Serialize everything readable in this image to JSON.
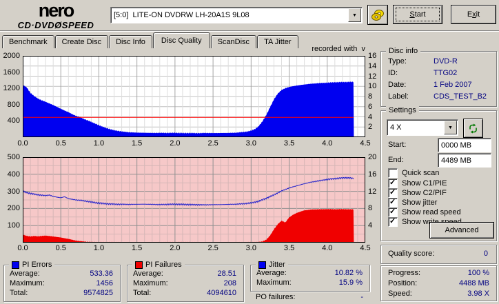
{
  "header": {
    "logo_top": "nero",
    "logo_sub_left": "CD·DVD",
    "logo_disc": "Ø",
    "logo_sub_right": "SPEED",
    "drive_select_value": "[5:0]  LITE-ON DVDRW LH-20A1S 9L08",
    "start_button": {
      "u": "S",
      "p2": "tart"
    },
    "exit_button": {
      "p1": "E",
      "u": "x",
      "p2": "it"
    }
  },
  "tabs": [
    {
      "label": "Benchmark",
      "active": false
    },
    {
      "label": "Create Disc",
      "active": false
    },
    {
      "label": "Disc Info",
      "active": false
    },
    {
      "label": "Disc Quality",
      "active": true
    },
    {
      "label": "ScanDisc",
      "active": false
    },
    {
      "label": "TA Jitter",
      "active": false
    }
  ],
  "chart_note": "recorded with  v",
  "chart_data": [
    {
      "type": "area",
      "name": "pi-errors-chart",
      "title": "PI Errors vs position (GB) with write speed line",
      "bg": "#ffffff",
      "x_max": 4.5,
      "x_ticks": [
        "0.0",
        "0.5",
        "1.0",
        "1.5",
        "2.0",
        "2.5",
        "3.0",
        "3.5",
        "4.0",
        "4.5"
      ],
      "grid": {
        "x_minor": 0.1,
        "x_major": 0.5,
        "h_div": 8,
        "h_major_every": 1
      },
      "left_axis": {
        "max": 2000,
        "ticks": [
          2000,
          1600,
          1200,
          800,
          400
        ]
      },
      "right_axis": {
        "max": 16,
        "ticks": [
          16,
          14,
          12,
          10,
          8,
          6,
          4,
          2
        ]
      },
      "series": [
        {
          "name": "PI Errors",
          "type": "area",
          "axis": "left",
          "color": "#0000f0",
          "noise": 14,
          "min": 4,
          "points": [
            [
              0,
              1280
            ],
            [
              0.05,
              1230
            ],
            [
              0.1,
              1090
            ],
            [
              0.15,
              1010
            ],
            [
              0.2,
              950
            ],
            [
              0.25,
              905
            ],
            [
              0.3,
              870
            ],
            [
              0.35,
              830
            ],
            [
              0.4,
              790
            ],
            [
              0.45,
              745
            ],
            [
              0.5,
              700
            ],
            [
              0.55,
              655
            ],
            [
              0.6,
              615
            ],
            [
              0.65,
              565
            ],
            [
              0.7,
              525
            ],
            [
              0.75,
              495
            ],
            [
              0.8,
              450
            ],
            [
              0.85,
              415
            ],
            [
              0.9,
              375
            ],
            [
              0.95,
              335
            ],
            [
              1,
              295
            ],
            [
              1.05,
              255
            ],
            [
              1.1,
              225
            ],
            [
              1.15,
              195
            ],
            [
              1.2,
              170
            ],
            [
              1.3,
              140
            ],
            [
              1.4,
              120
            ],
            [
              1.5,
              112
            ],
            [
              1.6,
              108
            ],
            [
              1.7,
              104
            ],
            [
              1.8,
              106
            ],
            [
              1.9,
              104
            ],
            [
              2,
              108
            ],
            [
              2.1,
              100
            ],
            [
              2.2,
              102
            ],
            [
              2.3,
              98
            ],
            [
              2.4,
              104
            ],
            [
              2.5,
              100
            ],
            [
              2.6,
              102
            ],
            [
              2.7,
              104
            ],
            [
              2.8,
              110
            ],
            [
              2.9,
              128
            ],
            [
              2.95,
              140
            ],
            [
              3,
              160
            ],
            [
              3.05,
              200
            ],
            [
              3.1,
              270
            ],
            [
              3.15,
              390
            ],
            [
              3.2,
              550
            ],
            [
              3.25,
              740
            ],
            [
              3.3,
              930
            ],
            [
              3.35,
              1070
            ],
            [
              3.4,
              1160
            ],
            [
              3.45,
              1205
            ],
            [
              3.5,
              1235
            ],
            [
              3.6,
              1270
            ],
            [
              3.7,
              1295
            ],
            [
              3.8,
              1315
            ],
            [
              3.9,
              1330
            ],
            [
              4,
              1340
            ],
            [
              4.1,
              1350
            ],
            [
              4.2,
              1355
            ],
            [
              4.3,
              1360
            ],
            [
              4.35,
              1358
            ]
          ]
        },
        {
          "name": "Write speed 4X",
          "type": "line",
          "axis": "right",
          "color": "#ff0000",
          "noise": 0,
          "points": [
            [
              0,
              3.9
            ],
            [
              4.35,
              3.9
            ]
          ]
        }
      ]
    },
    {
      "type": "area",
      "name": "pi-failures-jitter-chart",
      "title": "PI Failures (left) and Jitter % (right) vs position (GB)",
      "bg": "#f6c8c8",
      "x_max": 4.5,
      "x_ticks": [
        "0.0",
        "0.5",
        "1.0",
        "1.5",
        "2.0",
        "2.5",
        "3.0",
        "3.5",
        "4.0",
        "4.5"
      ],
      "grid": {
        "x_minor": 0.1,
        "x_major": 0.5,
        "h_div": 10,
        "h_major_every": 2
      },
      "left_axis": {
        "max": 500,
        "ticks": [
          500,
          400,
          300,
          200,
          100
        ]
      },
      "right_axis": {
        "max": 20,
        "ticks": [
          20,
          16,
          12,
          8,
          4
        ]
      },
      "series": [
        {
          "name": "PI Failures",
          "type": "area",
          "axis": "left",
          "color": "#f00000",
          "noise": 2.5,
          "min": 1,
          "points": [
            [
              0,
              46
            ],
            [
              0.05,
              40
            ],
            [
              0.1,
              36
            ],
            [
              0.15,
              39
            ],
            [
              0.2,
              37
            ],
            [
              0.25,
              39
            ],
            [
              0.3,
              41
            ],
            [
              0.35,
              39
            ],
            [
              0.4,
              36
            ],
            [
              0.45,
              33
            ],
            [
              0.5,
              30
            ],
            [
              0.55,
              26
            ],
            [
              0.6,
              22
            ],
            [
              0.65,
              17
            ],
            [
              0.7,
              12
            ],
            [
              0.75,
              9
            ],
            [
              0.8,
              7
            ],
            [
              0.85,
              5
            ],
            [
              0.9,
              4
            ],
            [
              1,
              3
            ],
            [
              1.5,
              3
            ],
            [
              2,
              3
            ],
            [
              2.5,
              3
            ],
            [
              3,
              3
            ],
            [
              3.1,
              4
            ],
            [
              3.15,
              7
            ],
            [
              3.2,
              18
            ],
            [
              3.25,
              42
            ],
            [
              3.3,
              78
            ],
            [
              3.35,
              108
            ],
            [
              3.4,
              128
            ],
            [
              3.45,
              118
            ],
            [
              3.5,
              148
            ],
            [
              3.55,
              163
            ],
            [
              3.6,
              174
            ],
            [
              3.65,
              182
            ],
            [
              3.7,
              189
            ],
            [
              3.8,
              194
            ],
            [
              3.9,
              195
            ],
            [
              4,
              196
            ],
            [
              4.1,
              195
            ],
            [
              4.2,
              196
            ],
            [
              4.3,
              195
            ],
            [
              4.35,
              194
            ]
          ]
        },
        {
          "name": "Jitter %",
          "type": "line",
          "axis": "right",
          "color": "#2424cc",
          "noise": 0.18,
          "points": [
            [
              0,
              12
            ],
            [
              0.1,
              11.5
            ],
            [
              0.2,
              11.2
            ],
            [
              0.3,
              11
            ],
            [
              0.35,
              11.15
            ],
            [
              0.4,
              10.8
            ],
            [
              0.5,
              10.5
            ],
            [
              0.55,
              10.75
            ],
            [
              0.6,
              10.3
            ],
            [
              0.7,
              10
            ],
            [
              0.8,
              9.8
            ],
            [
              0.9,
              9.5
            ],
            [
              1,
              9.25
            ],
            [
              1.1,
              9.1
            ],
            [
              1.2,
              9
            ],
            [
              1.4,
              8.95
            ],
            [
              1.6,
              9
            ],
            [
              1.8,
              8.9
            ],
            [
              2,
              9
            ],
            [
              2.2,
              8.9
            ],
            [
              2.4,
              8.85
            ],
            [
              2.6,
              8.9
            ],
            [
              2.8,
              9
            ],
            [
              2.9,
              9.1
            ],
            [
              3,
              9.3
            ],
            [
              3.1,
              9.7
            ],
            [
              3.2,
              10.4
            ],
            [
              3.3,
              11.2
            ],
            [
              3.4,
              12.1
            ],
            [
              3.5,
              12.8
            ],
            [
              3.6,
              13.3
            ],
            [
              3.7,
              13.8
            ],
            [
              3.8,
              14.2
            ],
            [
              3.9,
              14.5
            ],
            [
              4,
              14.8
            ],
            [
              4.1,
              15
            ],
            [
              4.2,
              15.15
            ],
            [
              4.25,
              15.2
            ],
            [
              4.3,
              15.15
            ],
            [
              4.35,
              15
            ]
          ]
        }
      ]
    }
  ],
  "disc_info": {
    "title": "Disc info",
    "rows": [
      {
        "label": "Type:",
        "value": "DVD-R"
      },
      {
        "label": "ID:",
        "value": "TTG02"
      },
      {
        "label": "Date:",
        "value": "1 Feb 2007"
      },
      {
        "label": "Label:",
        "value": "CDS_TEST_B2"
      }
    ]
  },
  "settings": {
    "title": "Settings",
    "speed_select_value": "4 X",
    "start_label": "Start:",
    "start_value": "0000 MB",
    "end_label": "End:",
    "end_value": "4489 MB",
    "checkboxes": [
      {
        "label": "Quick scan",
        "checked": false
      },
      {
        "label": "Show C1/PIE",
        "checked": true
      },
      {
        "label": "Show C2/PIF",
        "checked": true
      },
      {
        "label": "Show jitter",
        "checked": true
      },
      {
        "label": "Show read speed",
        "checked": true
      },
      {
        "label": "Show write speed",
        "checked": true
      }
    ],
    "advanced_button": "Advanced"
  },
  "quality": {
    "label": "Quality score:",
    "value": "0"
  },
  "progress": {
    "rows": [
      {
        "label": "Progress:",
        "value": "100 %"
      },
      {
        "label": "Position:",
        "value": "4488 MB"
      },
      {
        "label": "Speed:",
        "value": "3.98 X"
      }
    ]
  },
  "stats_boxes": [
    {
      "title": "PI Errors",
      "color": "#0000f0",
      "rows": [
        {
          "label": "Average:",
          "value": "533.36"
        },
        {
          "label": "Maximum:",
          "value": "1456"
        },
        {
          "label": "Total:",
          "value": "9574825"
        }
      ]
    },
    {
      "title": "PI Failures",
      "color": "#f00000",
      "rows": [
        {
          "label": "Average:",
          "value": "28.51"
        },
        {
          "label": "Maximum:",
          "value": "208"
        },
        {
          "label": "Total:",
          "value": "4094610"
        }
      ]
    },
    {
      "title": "Jitter",
      "color": "#0000f0",
      "rows": [
        {
          "label": "Average:",
          "value": "10.82 %"
        },
        {
          "label": "Maximum:",
          "value": "15.9 %"
        }
      ]
    }
  ],
  "po_failures": {
    "label": "PO failures:",
    "value": "-"
  }
}
